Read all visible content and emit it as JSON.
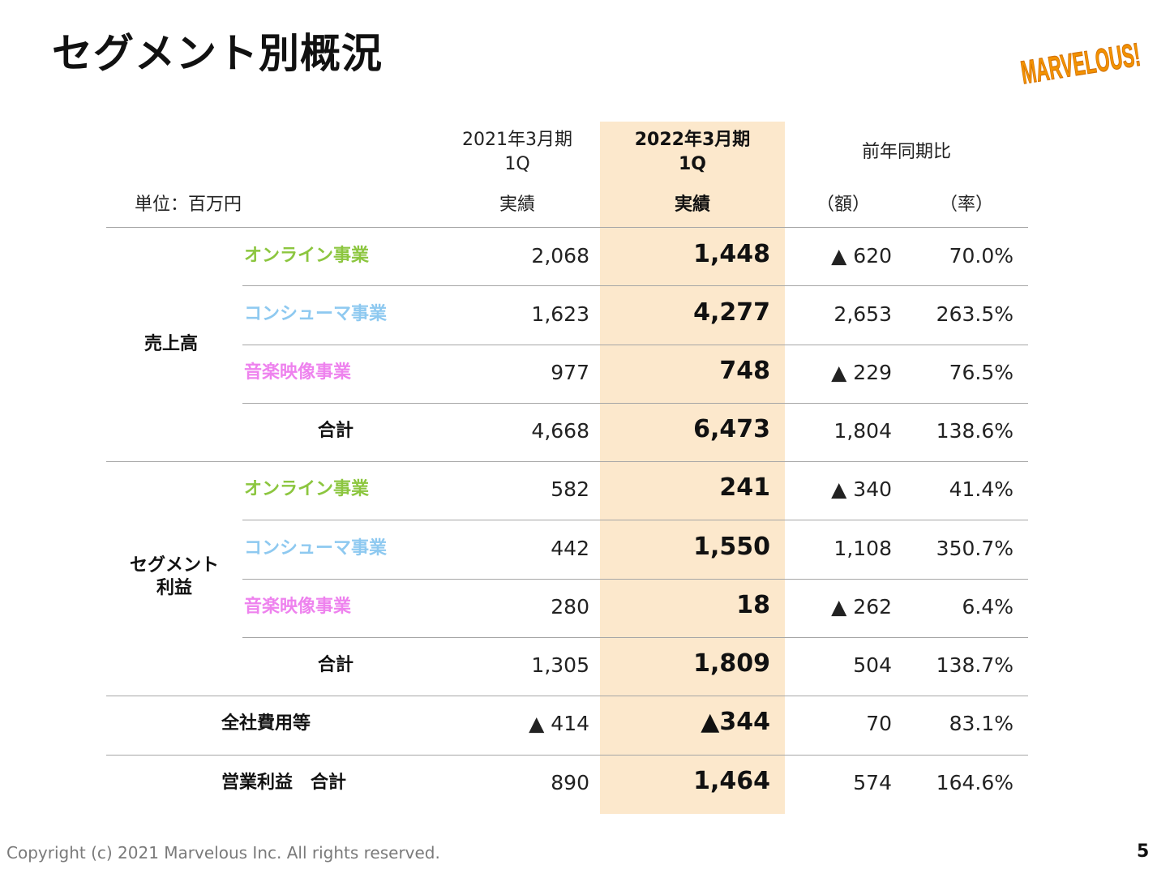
{
  "title": "セグメント別概況",
  "logo_text": "MARVELOUS!",
  "unit_label": "単位：百万円",
  "columns": {
    "prev": {
      "line1": "2021年3月期",
      "line2": "1Q",
      "sub": "実績"
    },
    "curr": {
      "line1": "2022年3月期",
      "line2": "1Q",
      "sub": "実績"
    },
    "yoy": {
      "label": "前年同期比",
      "amount": "（額）",
      "rate": "（率）"
    }
  },
  "groups": {
    "sales": "売上高",
    "segment_profit_line1": "セグメント",
    "segment_profit_line2": "利益"
  },
  "segment_colors": {
    "online": "#8cc63f",
    "consumer": "#8ec9f0",
    "music": "#ee82ee"
  },
  "rows": [
    {
      "label": "オンライン事業",
      "seg": "online",
      "prev": "2,068",
      "curr": "1,448",
      "diff": "▲ 620",
      "rate": "70.0%"
    },
    {
      "label": "コンシューマ事業",
      "seg": "consumer",
      "prev": "1,623",
      "curr": "4,277",
      "diff": "2,653",
      "rate": "263.5%"
    },
    {
      "label": "音楽映像事業",
      "seg": "music",
      "prev": "977",
      "curr": "748",
      "diff": "▲ 229",
      "rate": "76.5%"
    },
    {
      "label": "合計",
      "seg": "total",
      "prev": "4,668",
      "curr": "6,473",
      "diff": "1,804",
      "rate": "138.6%"
    },
    {
      "label": "オンライン事業",
      "seg": "online",
      "prev": "582",
      "curr": "241",
      "diff": "▲ 340",
      "rate": "41.4%"
    },
    {
      "label": "コンシューマ事業",
      "seg": "consumer",
      "prev": "442",
      "curr": "1,550",
      "diff": "1,108",
      "rate": "350.7%"
    },
    {
      "label": "音楽映像事業",
      "seg": "music",
      "prev": "280",
      "curr": "18",
      "diff": "▲ 262",
      "rate": "6.4%"
    },
    {
      "label": "合計",
      "seg": "total",
      "prev": "1,305",
      "curr": "1,809",
      "diff": "504",
      "rate": "138.7%"
    },
    {
      "label": "全社費用等",
      "seg": "corp",
      "prev": "▲ 414",
      "curr": "▲344",
      "diff": "70",
      "rate": "83.1%"
    },
    {
      "label": "営業利益　合計",
      "seg": "op",
      "prev": "890",
      "curr": "1,464",
      "diff": "574",
      "rate": "164.6%"
    }
  ],
  "footer": "Copyright (c) 2021 Marvelous Inc. All rights reserved.",
  "page_number": "5"
}
